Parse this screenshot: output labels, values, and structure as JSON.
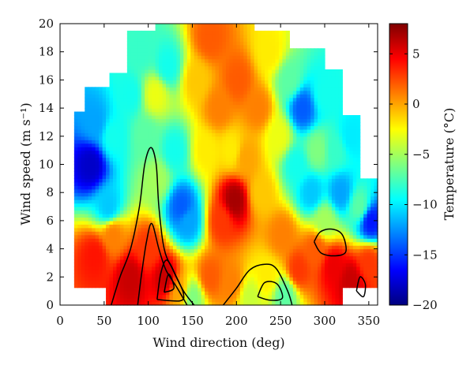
{
  "chart_data": {
    "type": "heatmap",
    "x_axis": {
      "label": "Wind direction (deg)",
      "range": [
        0,
        360
      ],
      "ticks": [
        0,
        50,
        100,
        150,
        200,
        250,
        300,
        350
      ],
      "tick_labels": [
        "0",
        "50",
        "100",
        "150",
        "200",
        "250",
        "300",
        "350"
      ]
    },
    "y_axis": {
      "label": "Wind speed (m s⁻¹)",
      "range": [
        0,
        20
      ],
      "ticks": [
        0,
        2,
        4,
        6,
        8,
        10,
        12,
        14,
        16,
        18,
        20
      ],
      "tick_labels": [
        "0",
        "2",
        "4",
        "6",
        "8",
        "10",
        "12",
        "14",
        "16",
        "18",
        "20"
      ]
    },
    "colorbar": {
      "label": "Temperature (°C)",
      "range": [
        -20,
        8
      ],
      "ticks": [
        5,
        0,
        -5,
        -10,
        -15,
        -20
      ],
      "tick_labels": [
        "5",
        "0",
        "−5",
        "−10",
        "−15",
        "−20"
      ],
      "colormap": "jet"
    },
    "coverage_upper_speed": [
      {
        "dir_min": 17,
        "dir_max": 27,
        "max_speed": 13.7
      },
      {
        "dir_min": 27,
        "dir_max": 56,
        "max_speed": 15.5
      },
      {
        "dir_min": 56,
        "dir_max": 77,
        "max_speed": 16.5
      },
      {
        "dir_min": 77,
        "dir_max": 100,
        "max_speed": 19.4
      },
      {
        "dir_min": 100,
        "dir_max": 140,
        "max_speed": 20
      },
      {
        "dir_min": 140,
        "dir_max": 240,
        "max_speed": 20
      },
      {
        "dir_min": 240,
        "dir_max": 262,
        "max_speed": 19.4
      },
      {
        "dir_min": 262,
        "dir_max": 302,
        "max_speed": 18.2
      },
      {
        "dir_min": 302,
        "dir_max": 322,
        "max_speed": 16.8
      },
      {
        "dir_min": 322,
        "dir_max": 340,
        "max_speed": 13.6
      },
      {
        "dir_min": 340,
        "dir_max": 360,
        "max_speed": 9.1
      }
    ],
    "coverage_gaps": [
      {
        "dir_min": 97,
        "dir_max": 110,
        "speed_min": 19.4,
        "speed_max": 20
      },
      {
        "dir_min": 220,
        "dir_max": 240,
        "speed_min": 19.4,
        "speed_max": 20
      }
    ],
    "coverage_lower_speed": [
      {
        "dir_min": 17,
        "dir_max": 52,
        "min_speed": 1.2
      },
      {
        "dir_min": 52,
        "dir_max": 322,
        "min_speed": 0
      },
      {
        "dir_min": 322,
        "dir_max": 350,
        "min_speed": 1.2
      },
      {
        "dir_min": 350,
        "dir_max": 360,
        "min_speed": 1.2
      }
    ],
    "temperature_anchors": [
      {
        "dir": 35,
        "speed": 10,
        "temp": -18
      },
      {
        "dir": 40,
        "speed": 13,
        "temp": -12
      },
      {
        "dir": 55,
        "speed": 7,
        "temp": -11
      },
      {
        "dir": 60,
        "speed": 12,
        "temp": -9
      },
      {
        "dir": 80,
        "speed": 15,
        "temp": -9
      },
      {
        "dir": 92,
        "speed": 18,
        "temp": -8
      },
      {
        "dir": 98,
        "speed": 12,
        "temp": -7
      },
      {
        "dir": 108,
        "speed": 15,
        "temp": -3
      },
      {
        "dir": 110,
        "speed": 9,
        "temp": -5
      },
      {
        "dir": 122,
        "speed": 17,
        "temp": -9
      },
      {
        "dir": 130,
        "speed": 11,
        "temp": -9
      },
      {
        "dir": 138,
        "speed": 7,
        "temp": -14
      },
      {
        "dir": 145,
        "speed": 6,
        "temp": -12
      },
      {
        "dir": 155,
        "speed": 16,
        "temp": -1
      },
      {
        "dir": 165,
        "speed": 11,
        "temp": -2
      },
      {
        "dir": 170,
        "speed": 19,
        "temp": 2
      },
      {
        "dir": 180,
        "speed": 14,
        "temp": 1
      },
      {
        "dir": 183,
        "speed": 6,
        "temp": 3
      },
      {
        "dir": 195,
        "speed": 11,
        "temp": -2
      },
      {
        "dir": 198,
        "speed": 7.5,
        "temp": 7
      },
      {
        "dir": 202,
        "speed": 16,
        "temp": 2
      },
      {
        "dir": 210,
        "speed": 10.5,
        "temp": 0
      },
      {
        "dir": 225,
        "speed": 14,
        "temp": 1
      },
      {
        "dir": 228,
        "speed": 8,
        "temp": -1
      },
      {
        "dir": 238,
        "speed": 18,
        "temp": -2
      },
      {
        "dir": 248,
        "speed": 12,
        "temp": -3
      },
      {
        "dir": 252,
        "speed": 5,
        "temp": 1
      },
      {
        "dir": 260,
        "speed": 16,
        "temp": -7
      },
      {
        "dir": 268,
        "speed": 10,
        "temp": -9
      },
      {
        "dir": 275,
        "speed": 14,
        "temp": -14
      },
      {
        "dir": 285,
        "speed": 8,
        "temp": -11
      },
      {
        "dir": 292,
        "speed": 11,
        "temp": -6
      },
      {
        "dir": 300,
        "speed": 15,
        "temp": -9
      },
      {
        "dir": 300,
        "speed": 6,
        "temp": -5
      },
      {
        "dir": 312,
        "speed": 11,
        "temp": -8
      },
      {
        "dir": 318,
        "speed": 8,
        "temp": -12
      },
      {
        "dir": 330,
        "speed": 12,
        "temp": -10
      },
      {
        "dir": 340,
        "speed": 7,
        "temp": -7
      },
      {
        "dir": 352,
        "speed": 6,
        "temp": -16
      },
      {
        "dir": 40,
        "speed": 3.5,
        "temp": 4
      },
      {
        "dir": 60,
        "speed": 5,
        "temp": 1
      },
      {
        "dir": 80,
        "speed": 2,
        "temp": 6
      },
      {
        "dir": 100,
        "speed": 4,
        "temp": 3
      },
      {
        "dir": 120,
        "speed": 2,
        "temp": 6
      },
      {
        "dir": 135,
        "speed": 1,
        "temp": 0
      },
      {
        "dir": 150,
        "speed": 0.6,
        "temp": -6
      },
      {
        "dir": 170,
        "speed": 2,
        "temp": 2
      },
      {
        "dir": 195,
        "speed": 1.5,
        "temp": 1
      },
      {
        "dir": 215,
        "speed": 0.6,
        "temp": -4
      },
      {
        "dir": 235,
        "speed": 2,
        "temp": -2
      },
      {
        "dir": 255,
        "speed": 0.8,
        "temp": -7
      },
      {
        "dir": 270,
        "speed": 2.5,
        "temp": 3
      },
      {
        "dir": 290,
        "speed": 4,
        "temp": 2
      },
      {
        "dir": 310,
        "speed": 2.8,
        "temp": 5
      },
      {
        "dir": 330,
        "speed": 1.8,
        "temp": 6
      },
      {
        "dir": 350,
        "speed": 3,
        "temp": 3
      }
    ],
    "contour_lines": [
      {
        "points": [
          [
            58,
            0
          ],
          [
            68,
            2
          ],
          [
            80,
            4
          ],
          [
            90,
            7
          ],
          [
            96,
            10
          ],
          [
            103,
            11.2
          ],
          [
            109,
            10
          ],
          [
            112,
            7
          ],
          [
            118,
            4
          ],
          [
            128,
            2.5
          ],
          [
            140,
            1
          ],
          [
            152,
            0
          ]
        ]
      },
      {
        "points": [
          [
            88,
            0
          ],
          [
            92,
            2
          ],
          [
            98,
            4.5
          ],
          [
            104,
            5.8
          ],
          [
            112,
            4
          ],
          [
            120,
            2.5
          ],
          [
            132,
            1.3
          ],
          [
            144,
            0
          ]
        ]
      },
      {
        "points": [
          [
            110,
            0.4
          ],
          [
            114,
            2.2
          ],
          [
            121,
            3.2
          ],
          [
            132,
            2
          ],
          [
            140,
            0.8
          ],
          [
            136,
            0.3
          ],
          [
            110,
            0.4
          ]
        ]
      },
      {
        "points": [
          [
            118,
            0.9
          ],
          [
            123,
            2.2
          ],
          [
            129,
            1.2
          ],
          [
            118,
            0.9
          ]
        ]
      },
      {
        "points": [
          [
            185,
            0
          ],
          [
            200,
            1.2
          ],
          [
            215,
            2.5
          ],
          [
            232,
            2.9
          ],
          [
            245,
            2.6
          ],
          [
            258,
            1
          ],
          [
            263,
            0
          ]
        ]
      },
      {
        "points": [
          [
            224,
            0.6
          ],
          [
            232,
            1.6
          ],
          [
            246,
            1.5
          ],
          [
            252,
            0.5
          ],
          [
            238,
            0.35
          ],
          [
            224,
            0.6
          ]
        ]
      },
      {
        "points": [
          [
            288,
            4.5
          ],
          [
            295,
            5.2
          ],
          [
            308,
            5.4
          ],
          [
            320,
            5
          ],
          [
            324,
            3.8
          ],
          [
            312,
            3.5
          ],
          [
            296,
            3.7
          ],
          [
            288,
            4.5
          ]
        ]
      },
      {
        "points": [
          [
            336,
            1
          ],
          [
            340,
            2
          ],
          [
            346,
            1.5
          ],
          [
            344,
            0.6
          ],
          [
            336,
            1
          ]
        ]
      }
    ]
  }
}
